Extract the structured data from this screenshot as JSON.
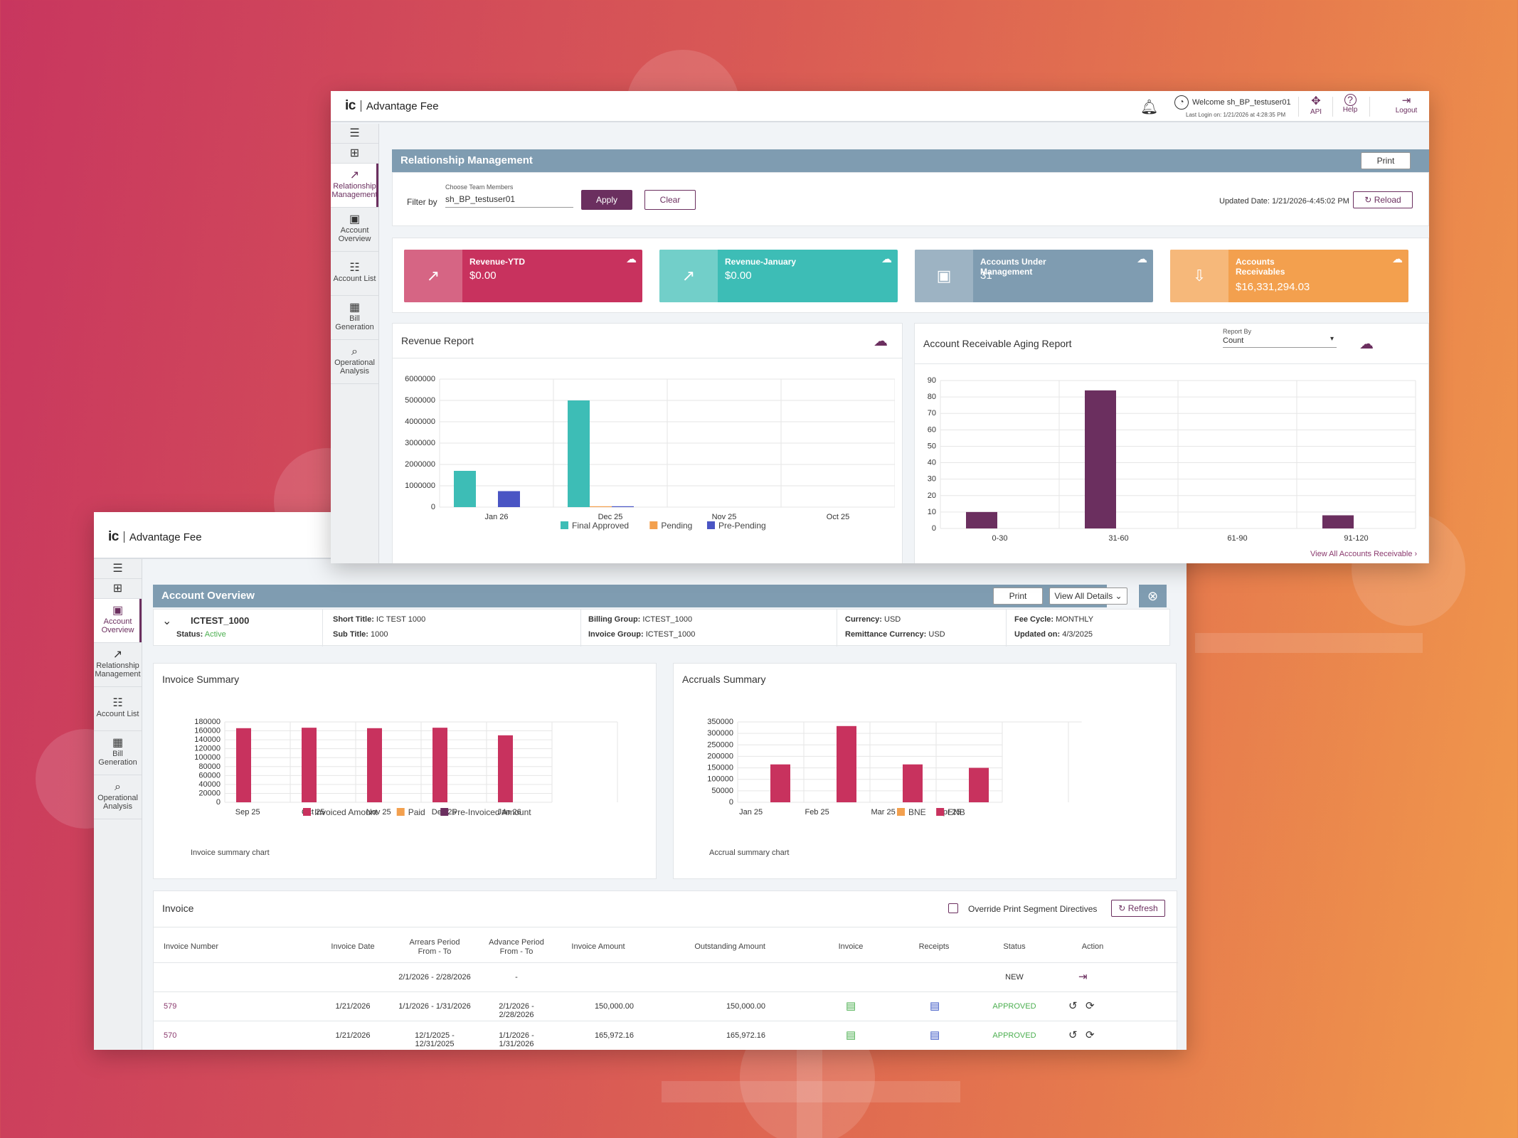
{
  "brand": {
    "logo": "ic",
    "name": "Advantage Fee"
  },
  "header": {
    "welcome": "Welcome sh_BP_testuser01",
    "last_login": "Last Login on: 1/21/2026 at 4:28:35 PM",
    "api_label": "API",
    "help_label": "Help",
    "logout_label": "Logout"
  },
  "sidebar_front": [
    {
      "icon": "relationship-chart-icon",
      "glyph": "↗",
      "label": "Relationship Management",
      "active": true
    },
    {
      "icon": "account-overview-icon",
      "glyph": "▣",
      "label": "Account Overview"
    },
    {
      "icon": "account-list-icon",
      "glyph": "☷",
      "label": "Account List"
    },
    {
      "icon": "bill-generation-icon",
      "glyph": "▦",
      "label": "Bill Generation"
    },
    {
      "icon": "operational-analysis-icon",
      "glyph": "⌕",
      "label": "Operational Analysis"
    }
  ],
  "sidebar_back": [
    {
      "icon": "account-overview-icon",
      "glyph": "▣",
      "label": "Account Overview",
      "active": true
    },
    {
      "icon": "relationship-chart-icon",
      "glyph": "↗",
      "label": "Relationship Management"
    },
    {
      "icon": "account-list-icon",
      "glyph": "☷",
      "label": "Account List"
    },
    {
      "icon": "bill-generation-icon",
      "glyph": "▦",
      "label": "Bill Generation"
    },
    {
      "icon": "operational-analysis-icon",
      "glyph": "⌕",
      "label": "Operational Analysis"
    }
  ],
  "rm": {
    "title": "Relationship Management",
    "print": "Print",
    "filter_label": "Filter by",
    "team_label": "Choose Team Members",
    "team_value": "sh_BP_testuser01",
    "apply": "Apply",
    "clear": "Clear",
    "updated": "Updated Date: 1/21/2026-4:45:02 PM",
    "reload": "Reload",
    "cards": [
      {
        "label": "Revenue-YTD",
        "value": "$0.00",
        "color": "#c8325e",
        "icon_bg": "#d66584"
      },
      {
        "label": "Revenue-January",
        "value": "$0.00",
        "color": "#3dbdb6",
        "icon_bg": "#72cfc9"
      },
      {
        "label": "Accounts Under Management",
        "value": "31",
        "color": "#7f9cb1",
        "icon_bg": "#9db3c3"
      },
      {
        "label": "Accounts Receivables",
        "value": "$16,331,294.03",
        "color": "#f3a04e",
        "icon_bg": "#f6b87a"
      }
    ],
    "revenue_title": "Revenue Report",
    "aging_title": "Account Receivable Aging Report",
    "report_by_label": "Report By",
    "report_by_value": "Count",
    "view_all": "View All Accounts Receivable"
  },
  "ao": {
    "title": "Account Overview",
    "print": "Print",
    "view_all": "View All Details",
    "account": "ICTEST_1000",
    "status_label": "Status:",
    "status_value": "Active",
    "short_title_label": "Short Title:",
    "short_title": "IC TEST 1000",
    "sub_title_label": "Sub Title:",
    "sub_title": "1000",
    "billing_label": "Billing Group:",
    "billing": "ICTEST_1000",
    "invoice_group_label": "Invoice Group:",
    "invoice_group": "ICTEST_1000",
    "currency_label": "Currency:",
    "currency": "USD",
    "remit_label": "Remittance Currency:",
    "remit": "USD",
    "fee_label": "Fee Cycle:",
    "fee": "MONTHLY",
    "updated_label": "Updated on:",
    "updated": "4/3/2025",
    "invoice_summary_title": "Invoice Summary",
    "invoice_summary_caption": "Invoice summary chart",
    "accruals_title": "Accruals Summary",
    "accruals_caption": "Accrual summary chart",
    "invoice_title": "Invoice",
    "override_label": "Override Print Segment Directives",
    "refresh": "Refresh"
  },
  "table": {
    "headers": [
      "Invoice Number",
      "Invoice Date",
      "Arrears Period\nFrom - To",
      "Advance Period\nFrom - To",
      "Invoice Amount",
      "Outstanding Amount",
      "Invoice",
      "Receipts",
      "Status",
      "Action"
    ],
    "rows": [
      {
        "number": "",
        "date": "",
        "arrears": "2/1/2026 - 2/28/2026",
        "advance": "-",
        "amount": "",
        "outstanding": "",
        "status": "NEW",
        "type": "new"
      },
      {
        "number": "579",
        "date": "1/21/2026",
        "arrears": "1/1/2026 - 1/31/2026",
        "advance": "2/1/2026 - 2/28/2026",
        "amount": "150,000.00",
        "outstanding": "150,000.00",
        "status": "APPROVED",
        "type": "approved"
      },
      {
        "number": "570",
        "date": "1/21/2026",
        "arrears": "12/1/2025 - 12/31/2025",
        "advance": "1/1/2026 - 1/31/2026",
        "amount": "165,972.16",
        "outstanding": "165,972.16",
        "status": "APPROVED",
        "type": "approved"
      }
    ]
  },
  "chart_data": [
    {
      "type": "bar",
      "title": "Revenue Report",
      "categories": [
        "Jan 26",
        "Dec 25",
        "Nov 25",
        "Oct 25"
      ],
      "ylim": [
        0,
        6000000
      ],
      "yticks": [
        0,
        1000000,
        2000000,
        3000000,
        4000000,
        5000000,
        6000000
      ],
      "series": [
        {
          "name": "Final Approved",
          "color": "#3dbdb6",
          "values": [
            1700000,
            5000000,
            0,
            0
          ]
        },
        {
          "name": "Pending",
          "color": "#f3a04e",
          "values": [
            0,
            40000,
            0,
            0
          ]
        },
        {
          "name": "Pre-Pending",
          "color": "#4a55c4",
          "values": [
            750000,
            40000,
            0,
            0
          ]
        }
      ]
    },
    {
      "type": "bar",
      "title": "Account Receivable Aging Report",
      "categories": [
        "0-30",
        "31-60",
        "61-90",
        "91-120"
      ],
      "ylim": [
        0,
        90
      ],
      "yticks": [
        0,
        10,
        20,
        30,
        40,
        50,
        60,
        70,
        80,
        90
      ],
      "series": [
        {
          "color": "#6b2f5f",
          "values": [
            10,
            84,
            0,
            8
          ]
        }
      ]
    },
    {
      "type": "bar",
      "title": "Invoice Summary",
      "categories": [
        "Sep 25",
        "Oct 25",
        "Nov 25",
        "Dec 25",
        "Jan 26"
      ],
      "ylim": [
        0,
        180000
      ],
      "yticks": [
        0,
        20000,
        40000,
        60000,
        80000,
        100000,
        120000,
        140000,
        160000,
        180000
      ],
      "series": [
        {
          "name": "Invoiced Amount",
          "color": "#c8325e",
          "values": [
            166000,
            167000,
            166000,
            167000,
            150000
          ]
        },
        {
          "name": "Paid",
          "color": "#f3a04e",
          "values": [
            0,
            0,
            0,
            0,
            0
          ]
        },
        {
          "name": "Pre-Invoiced Amount",
          "color": "#6b2f5f",
          "values": [
            0,
            0,
            0,
            0,
            0
          ]
        }
      ]
    },
    {
      "type": "bar",
      "title": "Accruals Summary",
      "categories": [
        "Jan 25",
        "Feb 25",
        "Mar 25",
        "Apr 25"
      ],
      "ylim": [
        0,
        350000
      ],
      "yticks": [
        0,
        50000,
        100000,
        150000,
        200000,
        250000,
        300000,
        350000
      ],
      "series": [
        {
          "name": "BNE",
          "color": "#f3a04e",
          "values": [
            0,
            0,
            0,
            0
          ]
        },
        {
          "name": "ENB",
          "color": "#c8325e",
          "values": [
            165000,
            332000,
            165000,
            150000
          ]
        }
      ]
    }
  ]
}
